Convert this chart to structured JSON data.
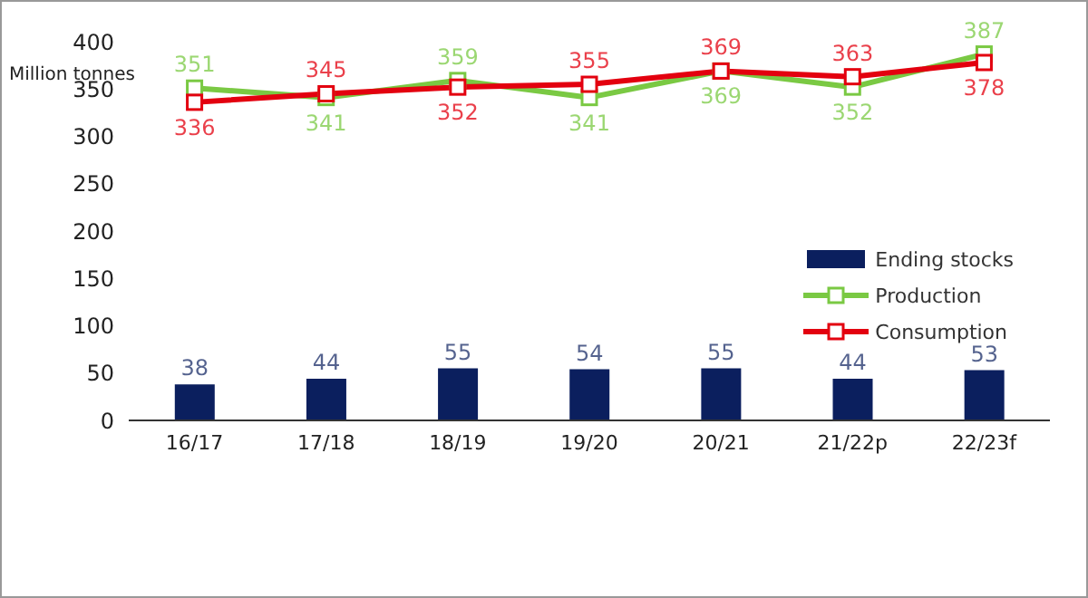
{
  "chart_data": {
    "type": "bar",
    "ylabel": "Million tonnes",
    "categories": [
      "16/17",
      "17/18",
      "18/19",
      "19/20",
      "20/21",
      "21/22p",
      "22/23f"
    ],
    "series": [
      {
        "name": "Ending stocks",
        "color": "#0b1f5e",
        "values": [
          38,
          44,
          55,
          54,
          55,
          44,
          53
        ]
      },
      {
        "name": "Production",
        "type": "line",
        "color": "#7ac943",
        "marker": "square",
        "values": [
          351,
          341,
          359,
          341,
          369,
          352,
          387
        ]
      },
      {
        "name": "Consumption",
        "type": "line",
        "color": "#e3000f",
        "marker": "square",
        "values": [
          336,
          345,
          352,
          355,
          369,
          363,
          378
        ]
      }
    ],
    "ylim": [
      0,
      400
    ],
    "yticks": [
      0,
      50,
      100,
      150,
      200,
      250,
      300,
      350,
      400
    ],
    "grid": false,
    "legend": "right",
    "data_labels": true
  }
}
